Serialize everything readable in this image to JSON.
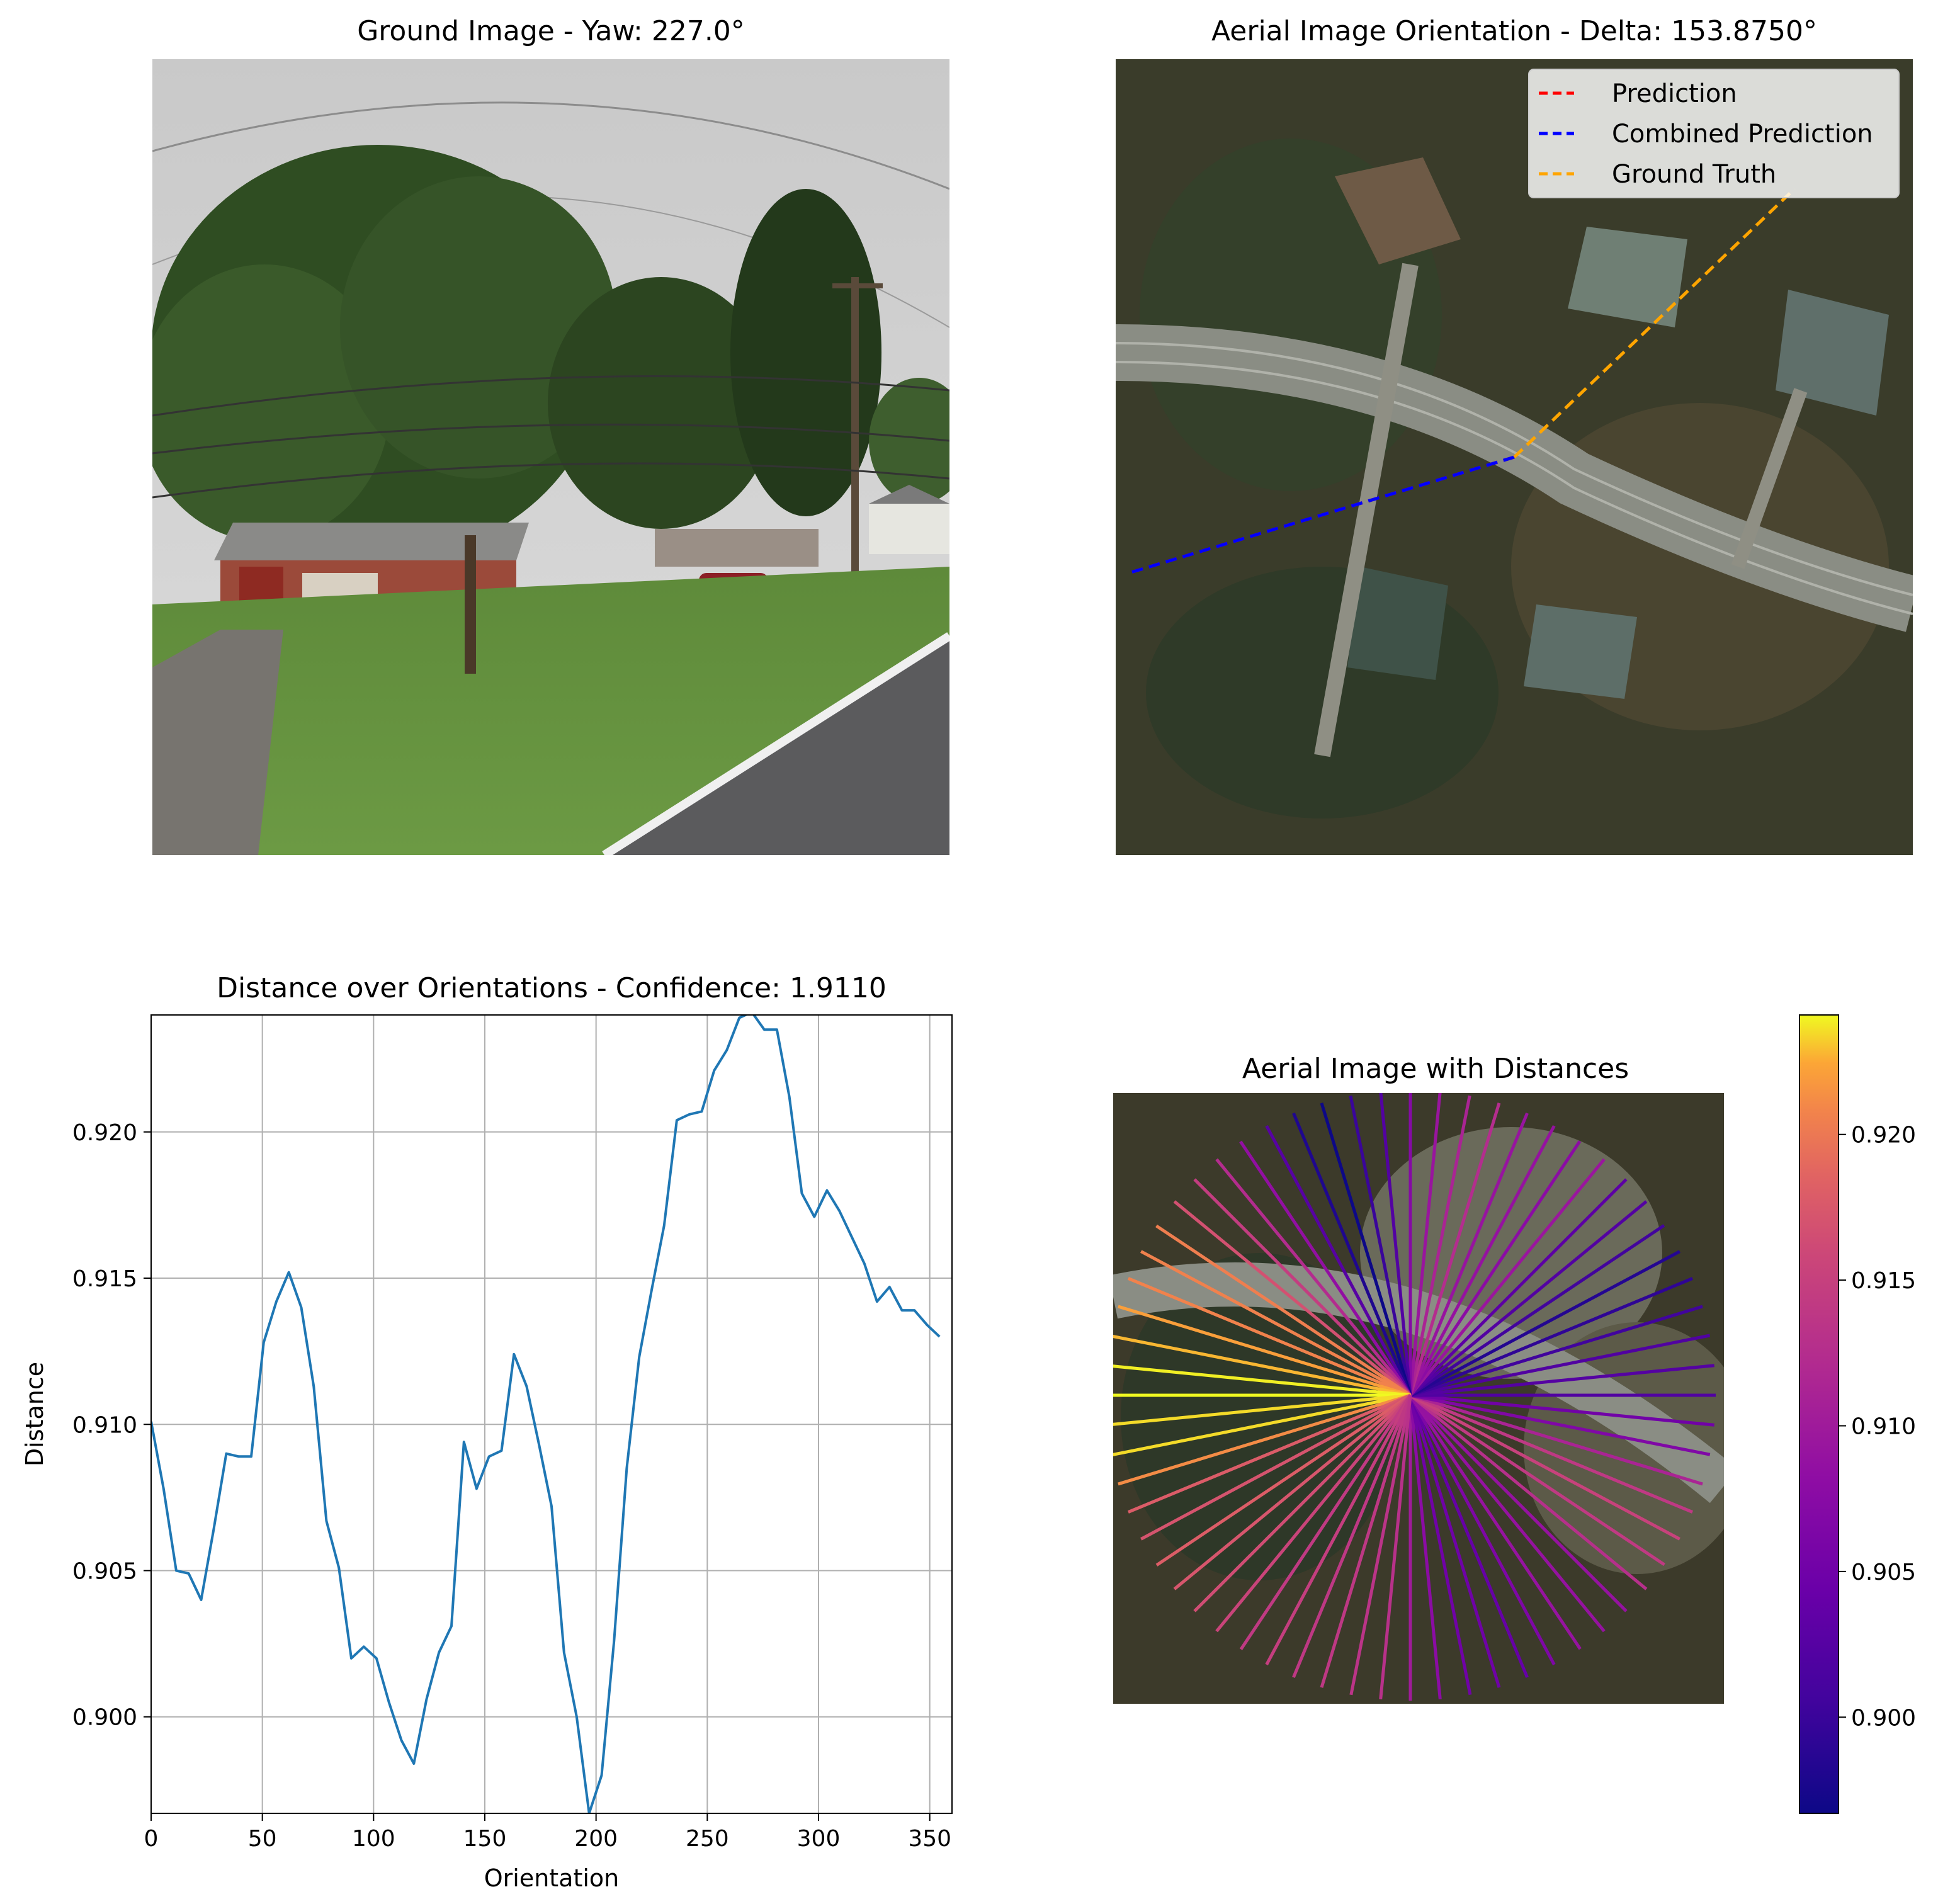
{
  "panels": {
    "ground": {
      "title": "Ground Image - Yaw: 227.0°"
    },
    "aerial": {
      "title": "Aerial Image Orientation - Delta: 153.8750°",
      "legend": [
        {
          "label": "Prediction",
          "color": "#ff0000"
        },
        {
          "label": "Combined Prediction",
          "color": "#0000ff"
        },
        {
          "label": "Ground Truth",
          "color": "#ffa500"
        }
      ]
    },
    "distances": {
      "title": "Aerial Image with Distances"
    }
  },
  "chart_data": [
    {
      "type": "line",
      "title": "Distance over Orientations - Confidence: 1.9110",
      "xlabel": "Orientation",
      "ylabel": "Distance",
      "xlim": [
        0,
        360
      ],
      "ylim": [
        0.8967,
        0.924
      ],
      "xticks": [
        "0",
        "50",
        "100",
        "150",
        "200",
        "250",
        "300",
        "350"
      ],
      "yticks": [
        "0.900",
        "0.905",
        "0.910",
        "0.915",
        "0.920"
      ],
      "grid": true,
      "color": "#1f77b4",
      "x": [
        0,
        5.6,
        11.3,
        16.9,
        22.5,
        28.1,
        33.8,
        39.4,
        45,
        50.6,
        56.3,
        61.9,
        67.5,
        73.1,
        78.8,
        84.4,
        90,
        95.6,
        101.3,
        106.9,
        112.5,
        118.1,
        123.8,
        129.4,
        135,
        140.6,
        146.3,
        151.9,
        157.5,
        163.1,
        168.8,
        174.4,
        180,
        185.6,
        191.3,
        196.9,
        202.5,
        208.1,
        213.8,
        219.4,
        225,
        230.6,
        236.3,
        241.9,
        247.5,
        253.1,
        258.8,
        264.4,
        270,
        275.6,
        281.3,
        286.9,
        292.5,
        298.1,
        303.8,
        309.4,
        315,
        320.6,
        326.3,
        331.9,
        337.5,
        343.1,
        348.8,
        354.4
      ],
      "y": [
        0.9101,
        0.9078,
        0.905,
        0.9049,
        0.904,
        0.9064,
        0.909,
        0.9089,
        0.9089,
        0.9128,
        0.9142,
        0.9152,
        0.914,
        0.9113,
        0.9067,
        0.9051,
        0.902,
        0.9024,
        0.902,
        0.9005,
        0.8992,
        0.8984,
        0.9006,
        0.9022,
        0.9031,
        0.9094,
        0.9078,
        0.9089,
        0.9091,
        0.9124,
        0.9113,
        0.9093,
        0.9072,
        0.9022,
        0.9,
        0.8967,
        0.898,
        0.9026,
        0.9085,
        0.9123,
        0.9146,
        0.9168,
        0.9204,
        0.9206,
        0.9207,
        0.9221,
        0.9228,
        0.9239,
        0.9241,
        0.9235,
        0.9235,
        0.9212,
        0.9179,
        0.9171,
        0.918,
        0.9173,
        0.9164,
        0.9155,
        0.9142,
        0.9147,
        0.9139,
        0.9139,
        0.9134,
        0.913
      ]
    },
    {
      "type": "heatmap",
      "title": "Aerial Image with Distances",
      "colorbar": {
        "ticks": [
          "0.900",
          "0.905",
          "0.910",
          "0.915",
          "0.920"
        ],
        "range": [
          0.8967,
          0.9241
        ],
        "colormap": "plasma"
      }
    }
  ]
}
